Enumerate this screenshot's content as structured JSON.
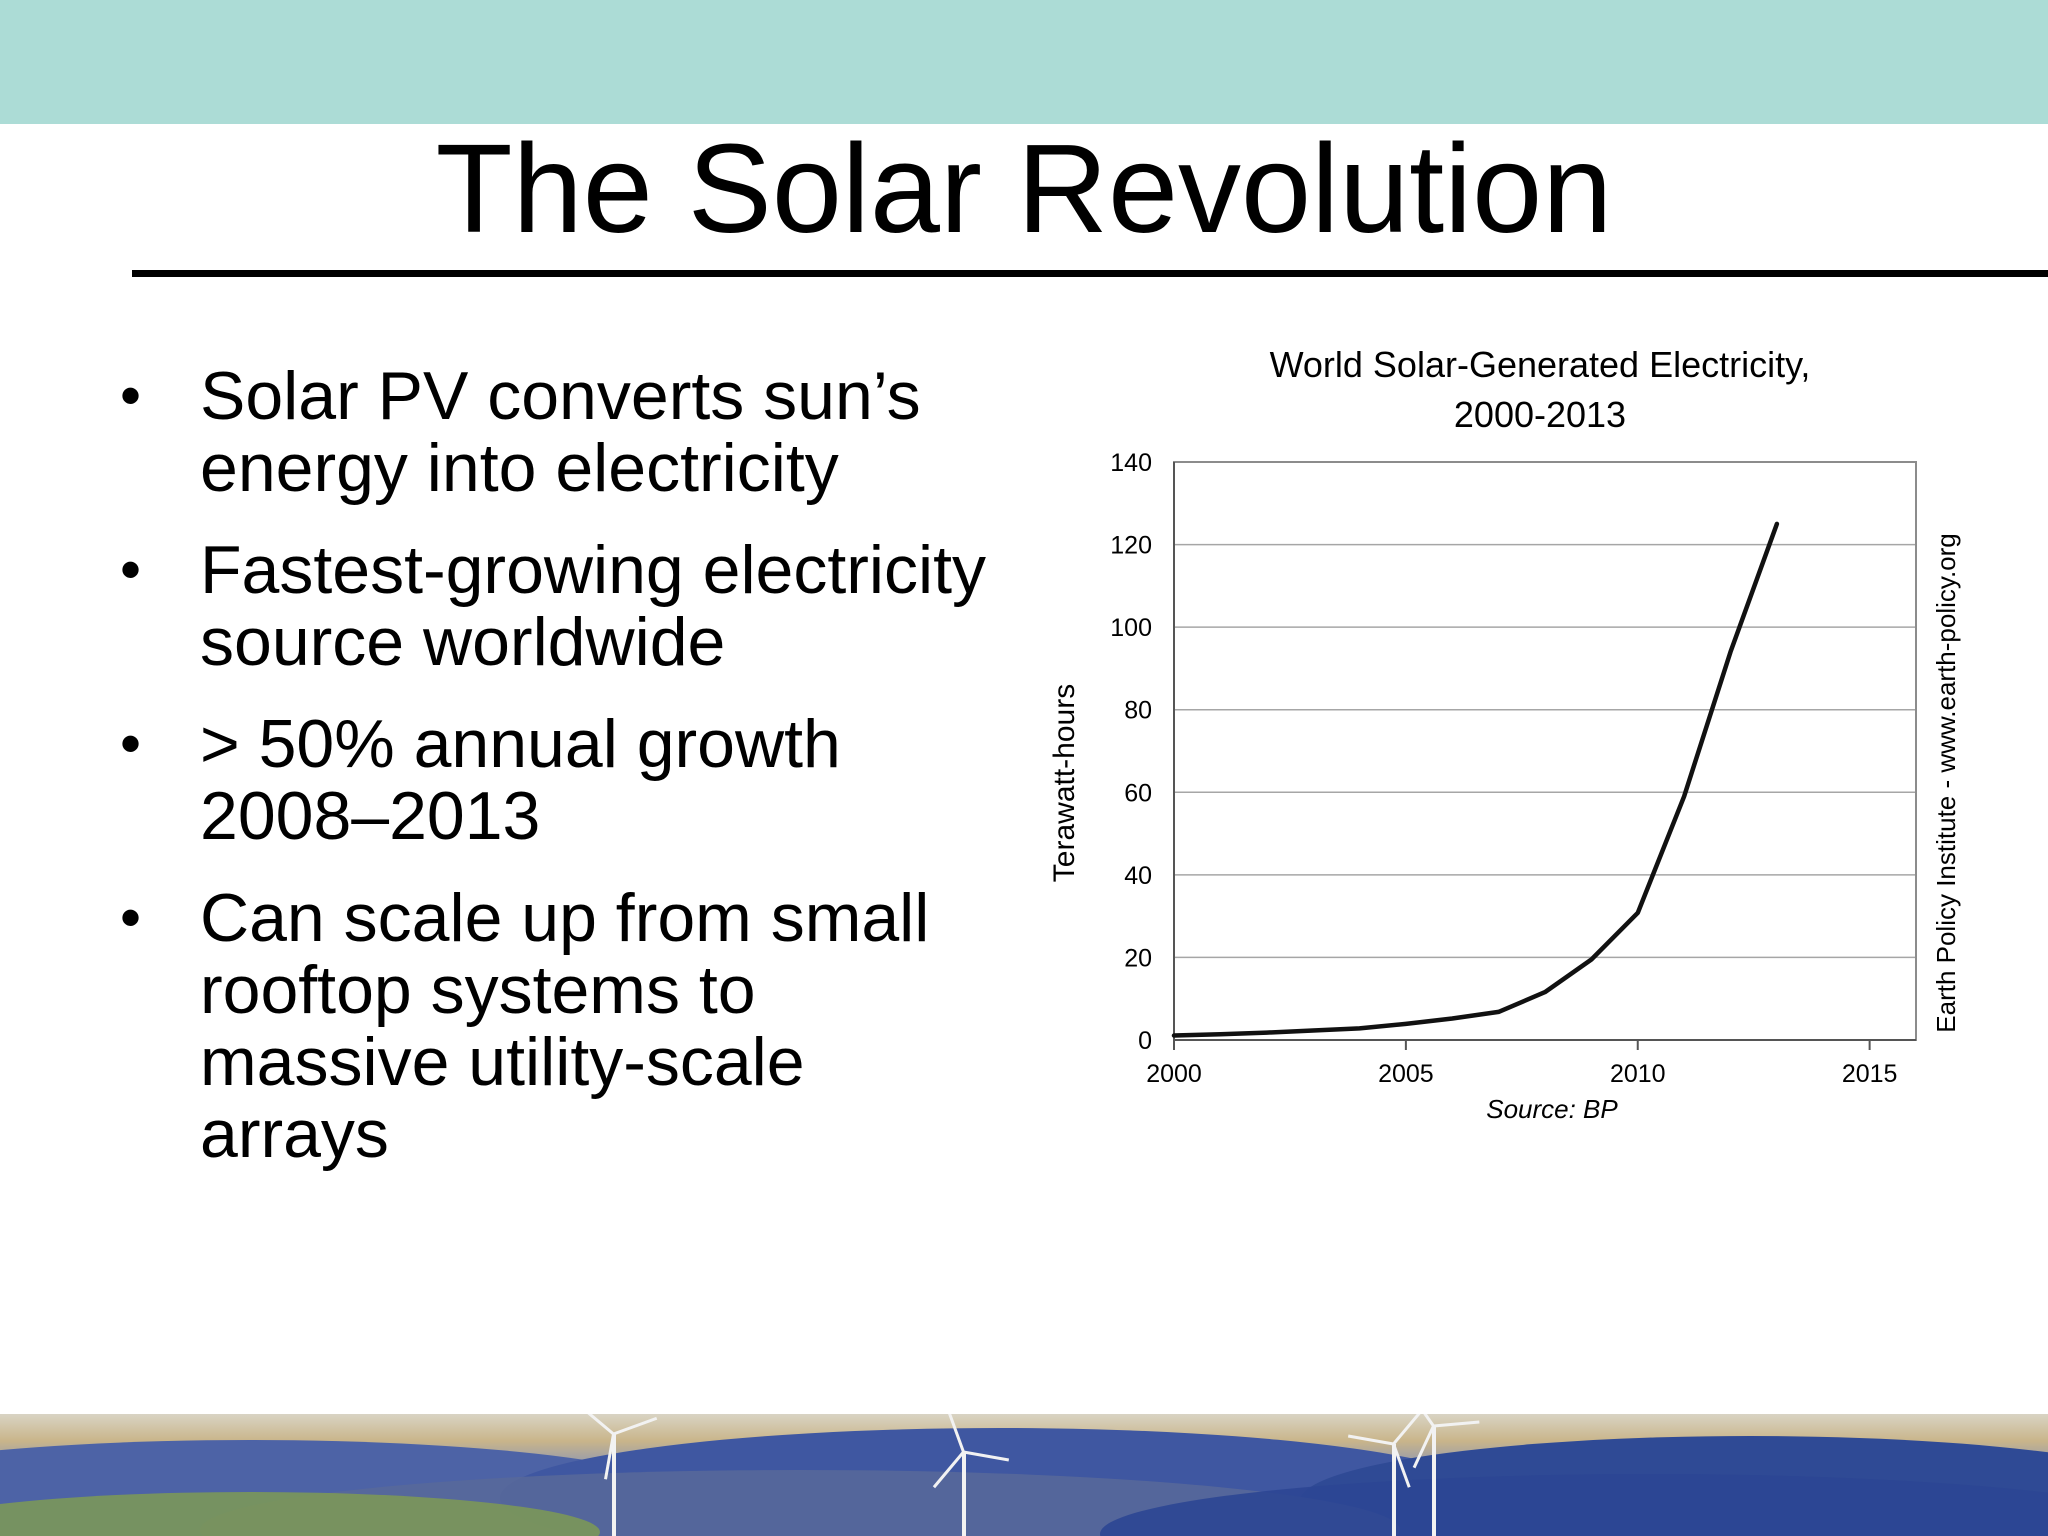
{
  "slide": {
    "title": "The Solar Revolution",
    "bullets": [
      "Solar PV converts sun’s energy into electricity",
      "Fastest-growing electricity source worldwide",
      "> 50% annual growth 2008–2013",
      "Can scale up from small rooftop systems to massive utility-scale arrays"
    ]
  },
  "colors": {
    "top_band": "#acdcd6",
    "text": "#000000",
    "line": "#111111",
    "grid": "#a6a6a6"
  },
  "chart_data": {
    "type": "line",
    "title": "World Solar-Generated Electricity,",
    "subtitle": "2000-2013",
    "xlabel": "",
    "ylabel": "Terawatt-hours",
    "source": "Source: BP",
    "credit": "Earth Policy Institute - www.earth-policy.org",
    "xlim": [
      2000,
      2016
    ],
    "ylim": [
      0,
      140
    ],
    "x_ticks": [
      "2000",
      "2005",
      "2010",
      "2015"
    ],
    "y_ticks": [
      "0",
      "20",
      "40",
      "60",
      "80",
      "100",
      "120",
      "140"
    ],
    "grid": true,
    "legend": "none",
    "series": [
      {
        "x": [
          2000,
          2001,
          2002,
          2003,
          2004,
          2005,
          2006,
          2007,
          2008,
          2009,
          2010,
          2011,
          2012,
          2013
        ],
        "values": [
          1.1,
          1.4,
          1.8,
          2.3,
          2.8,
          3.9,
          5.2,
          6.8,
          11.6,
          19.5,
          30.8,
          59,
          94,
          125
        ]
      }
    ]
  }
}
